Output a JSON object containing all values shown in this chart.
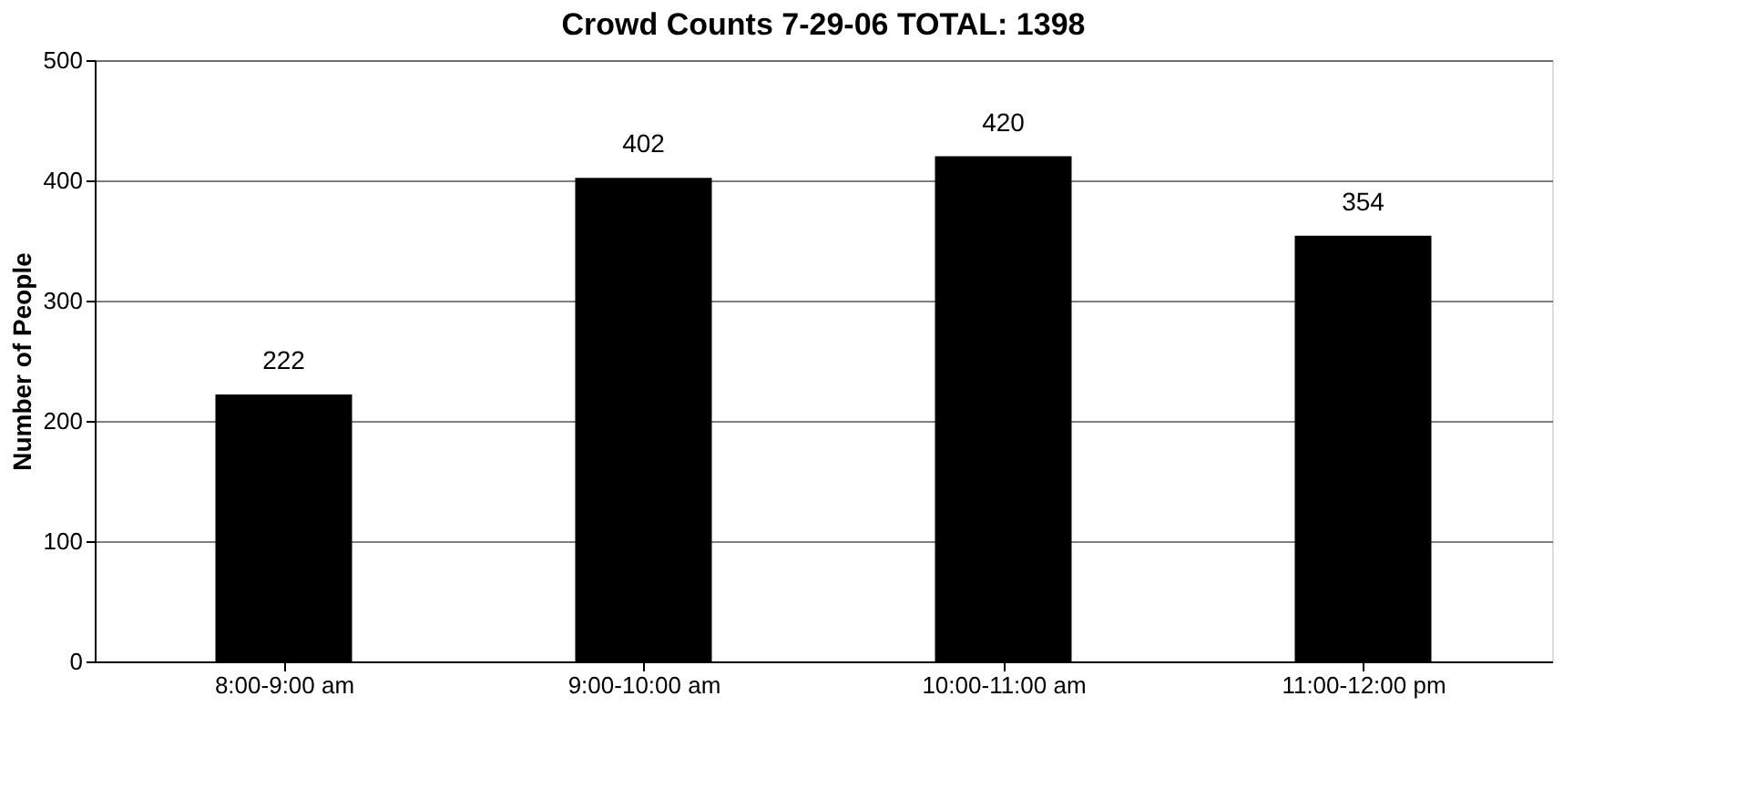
{
  "chart_data": {
    "type": "bar",
    "title": "Crowd Counts 7-29-06  TOTAL: 1398",
    "ylabel": "Number of People",
    "categories": [
      "8:00-9:00 am",
      "9:00-10:00 am",
      "10:00-11:00 am",
      "11:00-12:00 pm"
    ],
    "values": [
      222,
      402,
      420,
      354
    ],
    "color": "#000000",
    "ylim": [
      0,
      500
    ],
    "yticks": [
      0,
      100,
      200,
      300,
      400,
      500
    ],
    "grid": "y",
    "data_labels": true
  }
}
